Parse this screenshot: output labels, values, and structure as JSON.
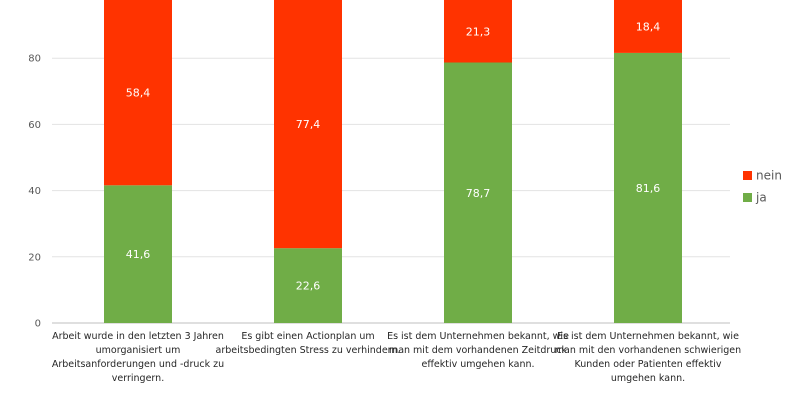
{
  "chart_data": {
    "type": "bar",
    "stacked": true,
    "categories": [
      "Arbeit wurde in den letzten 3 Jahren umorganisiert um Arbeitsanforderungen und -druck zu verringern.",
      "Es gibt einen Actionplan um arbeitsbedingten Stress zu verhindern.",
      "Es ist dem Unternehmen bekannt, wie man mit dem vorhandenen Zeitdruck effektiv umgehen kann.",
      "Es ist dem Unternehmen bekannt, wie man mit den vorhandenen schwierigen Kunden oder Patienten effektiv umgehen kann."
    ],
    "series": [
      {
        "name": "ja",
        "color": "#70ad47",
        "values": [
          41.6,
          22.6,
          78.7,
          81.6
        ],
        "labels": [
          "41,6",
          "22,6",
          "78,7",
          "81,6"
        ]
      },
      {
        "name": "nein",
        "color": "#ff3300",
        "values": [
          58.4,
          77.4,
          21.3,
          18.4
        ],
        "labels": [
          "58,4",
          "77,4",
          "21,3",
          "18,4"
        ]
      }
    ],
    "yticks": [
      0,
      20,
      40,
      60,
      80
    ],
    "ylim": [
      0,
      100
    ],
    "grid": true,
    "legend": {
      "position": "right",
      "order": [
        "nein",
        "ja"
      ]
    },
    "title": "",
    "xlabel": "",
    "ylabel": ""
  }
}
